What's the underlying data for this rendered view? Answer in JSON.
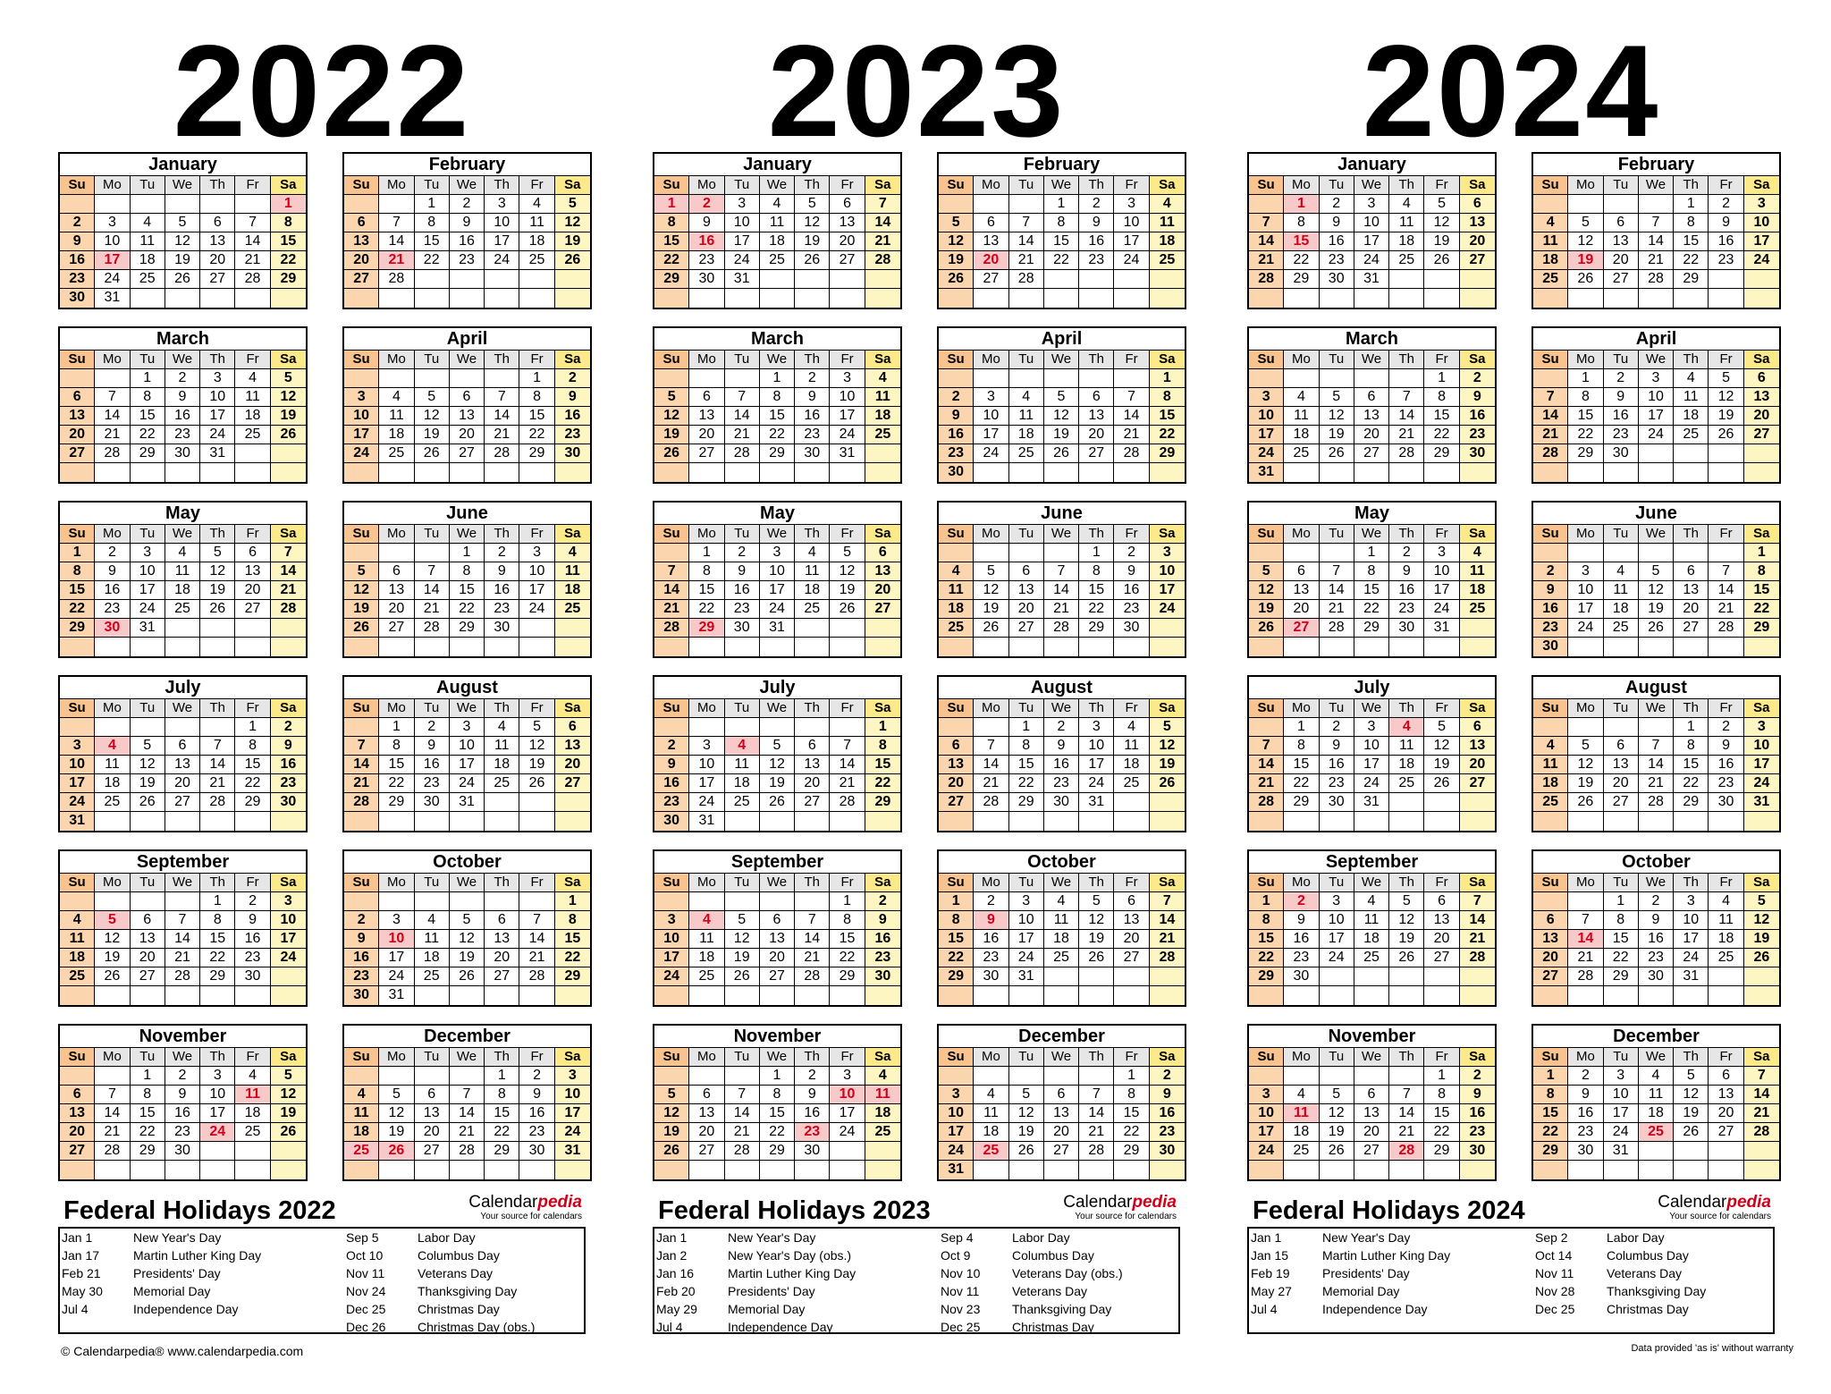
{
  "weekday_labels": [
    "Su",
    "Mo",
    "Tu",
    "We",
    "Th",
    "Fr",
    "Sa"
  ],
  "colors": {
    "sunday": "#fbd5ae",
    "saturday": "#fdf5c2",
    "holiday": "#f7c9c9",
    "holiday_text": "#d0021b",
    "header_sunday": "#f8c38f",
    "header_saturday": "#fbe98a",
    "header": "#e6e6e6"
  },
  "years": [
    {
      "year": "2022",
      "holiday_title": "Federal Holidays 2022",
      "holiday_dates": [
        "1-1",
        "1-17",
        "2-21",
        "5-30",
        "7-4",
        "9-5",
        "10-10",
        "11-11",
        "11-24",
        "12-25",
        "12-26"
      ],
      "holidays": [
        {
          "date": "Jan 1",
          "name": "New Year's Day"
        },
        {
          "date": "Jan 17",
          "name": "Martin Luther King Day"
        },
        {
          "date": "Feb 21",
          "name": "Presidents' Day"
        },
        {
          "date": "May 30",
          "name": "Memorial Day"
        },
        {
          "date": "Jul 4",
          "name": "Independence Day"
        },
        {
          "date": "Sep 5",
          "name": "Labor Day"
        },
        {
          "date": "Oct 10",
          "name": "Columbus Day"
        },
        {
          "date": "Nov 11",
          "name": "Veterans Day"
        },
        {
          "date": "Nov 24",
          "name": "Thanksgiving Day"
        },
        {
          "date": "Dec 25",
          "name": "Christmas Day"
        },
        {
          "date": "Dec 26",
          "name": "Christmas Day (obs.)"
        }
      ]
    },
    {
      "year": "2023",
      "holiday_title": "Federal Holidays 2023",
      "holiday_dates": [
        "1-1",
        "1-2",
        "1-16",
        "2-20",
        "5-29",
        "7-4",
        "9-4",
        "10-9",
        "11-10",
        "11-11",
        "11-23",
        "12-25"
      ],
      "holidays": [
        {
          "date": "Jan 1",
          "name": "New Year's Day"
        },
        {
          "date": "Jan 2",
          "name": "New Year's Day (obs.)"
        },
        {
          "date": "Jan 16",
          "name": "Martin Luther King Day"
        },
        {
          "date": "Feb 20",
          "name": "Presidents' Day"
        },
        {
          "date": "May 29",
          "name": "Memorial Day"
        },
        {
          "date": "Jul 4",
          "name": "Independence Day"
        },
        {
          "date": "Sep 4",
          "name": "Labor Day"
        },
        {
          "date": "Oct 9",
          "name": "Columbus Day"
        },
        {
          "date": "Nov 10",
          "name": "Veterans Day (obs.)"
        },
        {
          "date": "Nov 11",
          "name": "Veterans Day"
        },
        {
          "date": "Nov 23",
          "name": "Thanksgiving Day"
        },
        {
          "date": "Dec 25",
          "name": "Christmas Day"
        }
      ]
    },
    {
      "year": "2024",
      "holiday_title": "Federal Holidays 2024",
      "holiday_dates": [
        "1-1",
        "1-15",
        "2-19",
        "5-27",
        "7-4",
        "9-2",
        "10-14",
        "11-11",
        "11-28",
        "12-25"
      ],
      "holidays": [
        {
          "date": "Jan 1",
          "name": "New Year's Day"
        },
        {
          "date": "Jan 15",
          "name": "Martin Luther King Day"
        },
        {
          "date": "Feb 19",
          "name": "Presidents' Day"
        },
        {
          "date": "May 27",
          "name": "Memorial Day"
        },
        {
          "date": "Jul 4",
          "name": "Independence Day"
        },
        {
          "date": "Sep 2",
          "name": "Labor Day"
        },
        {
          "date": "Oct 14",
          "name": "Columbus Day"
        },
        {
          "date": "Nov 11",
          "name": "Veterans Day"
        },
        {
          "date": "Nov 28",
          "name": "Thanksgiving Day"
        },
        {
          "date": "Dec 25",
          "name": "Christmas Day"
        }
      ]
    }
  ],
  "month_names": [
    "January",
    "February",
    "March",
    "April",
    "May",
    "June",
    "July",
    "August",
    "September",
    "October",
    "November",
    "December"
  ],
  "brand": {
    "name_plain": "Calendar",
    "name_accent": "pedia",
    "tagline": "Your source for calendars"
  },
  "footer": {
    "copyright": "© Calendarpedia®   www.calendarpedia.com",
    "disclaimer": "Data provided 'as is' without warranty"
  }
}
